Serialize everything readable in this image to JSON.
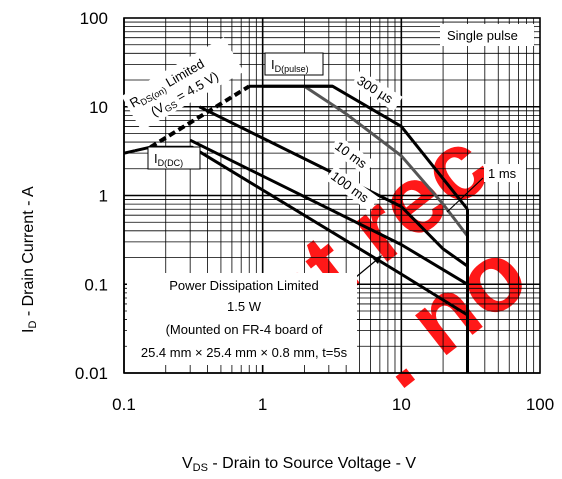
{
  "chart_data": {
    "type": "line",
    "xscale": "log",
    "yscale": "log",
    "xlim": [
      0.1,
      100
    ],
    "ylim": [
      0.01,
      100
    ],
    "grid": true,
    "legend": "none",
    "xlabel": {
      "main": "V",
      "sub": "DS",
      "rest": " - Drain to Source Voltage - V"
    },
    "ylabel": {
      "main": "I",
      "sub": "D",
      "rest": " - Drain Current - A"
    },
    "x_ticks": [
      {
        "value": 0.1,
        "label": "0.1"
      },
      {
        "value": 1,
        "label": "1"
      },
      {
        "value": 10,
        "label": "10"
      },
      {
        "value": 100,
        "label": "100"
      }
    ],
    "y_ticks": [
      {
        "value": 100,
        "label": "100"
      },
      {
        "value": 10,
        "label": "10"
      },
      {
        "value": 1,
        "label": "1"
      },
      {
        "value": 0.1,
        "label": "0.1"
      },
      {
        "value": 0.01,
        "label": "0.01"
      }
    ],
    "series": [
      {
        "name": "300 µs",
        "color": "#000000",
        "width": 3,
        "points": [
          [
            1.0,
            17
          ],
          [
            3.2,
            17
          ],
          [
            10,
            6
          ],
          [
            30,
            0.7
          ]
        ]
      },
      {
        "name": "1 ms",
        "color": "#555555",
        "width": 3,
        "points": [
          [
            2.0,
            17
          ],
          [
            4.0,
            8.3
          ],
          [
            10,
            2.8
          ],
          [
            20,
            0.8
          ],
          [
            30,
            0.35
          ]
        ]
      },
      {
        "name": "10 ms",
        "color": "#000000",
        "width": 3,
        "points": [
          [
            0.35,
            10
          ],
          [
            10,
            0.75
          ],
          [
            20,
            0.25
          ],
          [
            30,
            0.16
          ]
        ]
      },
      {
        "name": "100 ms",
        "color": "#000000",
        "width": 3,
        "points": [
          [
            0.3,
            4.2
          ],
          [
            10,
            0.28
          ],
          [
            30,
            0.1
          ]
        ]
      },
      {
        "name": "DC",
        "color": "#000000",
        "width": 3,
        "points": [
          [
            0.12,
            3.2
          ],
          [
            0.155,
            3.5
          ],
          [
            0.31,
            3.5
          ],
          [
            10,
            0.13
          ],
          [
            30,
            0.045
          ]
        ]
      },
      {
        "name": "I_D(DC)",
        "color": "#000000",
        "width": 3,
        "points": [
          [
            0.1,
            3.0
          ],
          [
            0.12,
            3.2
          ]
        ]
      }
    ],
    "boundaries": [
      {
        "name": "rds_limit",
        "style": "dashed",
        "color": "#000000",
        "width": 4,
        "points": [
          [
            0.155,
            3.5
          ],
          [
            0.8,
            17
          ]
        ]
      },
      {
        "name": "id_pulse",
        "style": "solid",
        "color": "#000000",
        "width": 3,
        "points": [
          [
            0.8,
            17
          ],
          [
            3.2,
            17
          ]
        ]
      },
      {
        "name": "vds_max",
        "style": "solid",
        "color": "#000000",
        "width": 3,
        "points": [
          [
            30,
            0.01
          ],
          [
            30,
            0.7
          ]
        ]
      }
    ],
    "annotations": {
      "single_pulse": "Single pulse",
      "id_pulse": {
        "main": "I",
        "sub": "D(pulse)"
      },
      "id_dc": {
        "main": "I",
        "sub": "D(DC)"
      },
      "rds_line1": {
        "main": "R",
        "sub": "DS(on)",
        "rest": " Limited"
      },
      "rds_line2": {
        "pre": "(V",
        "sub": "GS",
        "rest": " = 4.5 V)"
      },
      "t300": "300 µs",
      "t1ms": "1 ms",
      "t10ms": "10 ms",
      "t100ms": "100 ms",
      "pd_line1": "Power Dissipation Limited",
      "pd_line2": "1.5 W",
      "pd_line3": "(Mounted on FR-4 board of",
      "pd_line4": "25.4 mm × 25.4 mm × 0.8 mm, t=5s"
    }
  }
}
